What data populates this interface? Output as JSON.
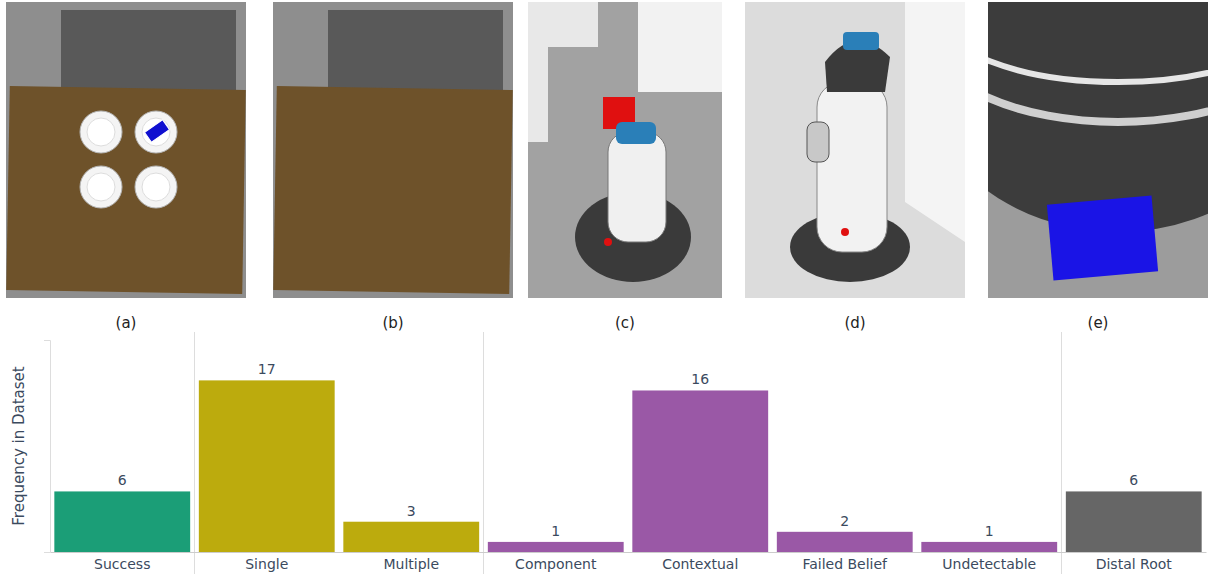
{
  "panel_labels": [
    "(a)",
    "(b)",
    "(c)",
    "(d)",
    "(e)"
  ],
  "chart_data": {
    "type": "bar",
    "y_label": "Frequency in Dataset",
    "categories": [
      "Success",
      "Single",
      "Multiple",
      "Component",
      "Contextual",
      "Failed Belief",
      "Undetectable",
      "Distal Root"
    ],
    "values": [
      6,
      17,
      3,
      1,
      16,
      2,
      1,
      6
    ],
    "colors": [
      "#1b9e77",
      "#bcab0d",
      "#bcab0d",
      "#9a58a6",
      "#9a58a6",
      "#9a58a6",
      "#9a58a6",
      "#666666"
    ],
    "ylim": [
      0,
      21
    ],
    "yticks": [],
    "data_labels": true,
    "tick_labels": "x"
  }
}
